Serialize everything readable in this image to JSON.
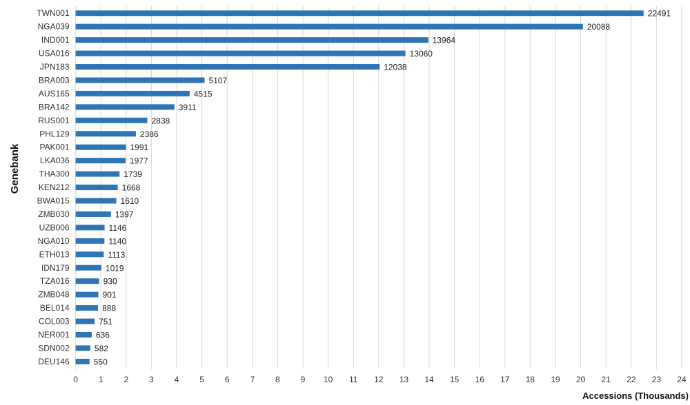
{
  "chart_data": {
    "type": "bar",
    "orientation": "horizontal",
    "title": "",
    "xlabel": "Accessions (Thousands)",
    "ylabel": "Genebank",
    "xlim": [
      0,
      24
    ],
    "x_ticks": [
      0,
      1,
      2,
      3,
      4,
      5,
      6,
      7,
      8,
      9,
      10,
      11,
      12,
      13,
      14,
      15,
      16,
      17,
      18,
      19,
      20,
      21,
      22,
      23,
      24
    ],
    "grid": "vertical",
    "legend": "none",
    "bar_color": "#2E75B6",
    "categories": [
      "TWN001",
      "NGA039",
      "IND001",
      "USA016",
      "JPN183",
      "BRA003",
      "AUS165",
      "BRA142",
      "RUS001",
      "PHL129",
      "PAK001",
      "LKA036",
      "THA300",
      "KEN212",
      "BWA015",
      "ZMB030",
      "UZB006",
      "NGA010",
      "ETH013",
      "IDN179",
      "TZA016",
      "ZMB048",
      "BEL014",
      "COL003",
      "NER001",
      "SDN002",
      "DEU146"
    ],
    "values": [
      22491,
      20088,
      13964,
      13060,
      12038,
      5107,
      4515,
      3911,
      2838,
      2386,
      1991,
      1977,
      1739,
      1668,
      1610,
      1397,
      1146,
      1140,
      1113,
      1019,
      930,
      901,
      888,
      751,
      636,
      582,
      550
    ],
    "value_labels": [
      "22491",
      "20088",
      "13964",
      "13060",
      "12038",
      "5107",
      "4515",
      "3911",
      "2838",
      "2386",
      "1991",
      "1977",
      "1739",
      "1668",
      "1610",
      "1397",
      "1146",
      "1140",
      "1113",
      "1019",
      "930",
      "901",
      "888",
      "751",
      "636",
      "582",
      "550"
    ]
  }
}
